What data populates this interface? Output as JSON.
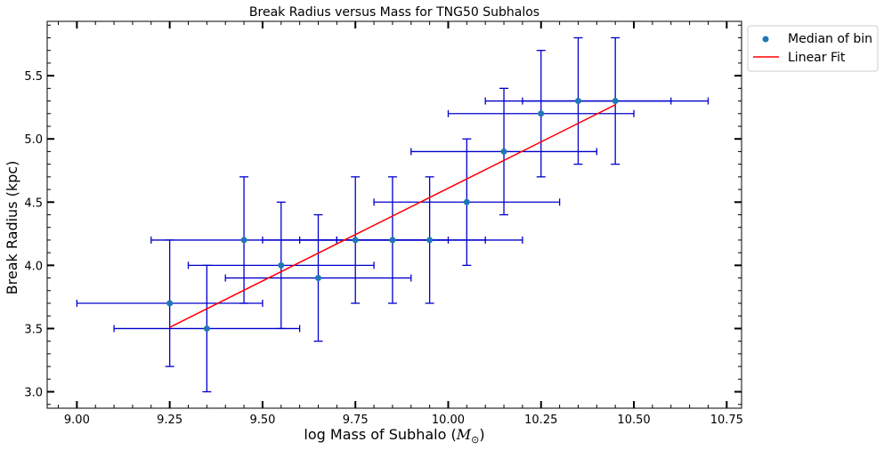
{
  "chart_data": {
    "type": "scatter",
    "title": "Break Radius versus Mass for TNG50 Subhalos",
    "xlabel": "log Mass of Subhalo (",
    "xlabel_math": "M",
    "xlabel_sub": "⊙",
    "xlabel_end": ")",
    "ylabel": "Break Radius (kpc)",
    "xlim": [
      8.92,
      10.79
    ],
    "ylim": [
      2.87,
      5.93
    ],
    "xticks": [
      9.0,
      9.25,
      9.5,
      9.75,
      10.0,
      10.25,
      10.5,
      10.75
    ],
    "xtick_labels": [
      "9.00",
      "9.25",
      "9.50",
      "9.75",
      "10.00",
      "10.25",
      "10.50",
      "10.75"
    ],
    "yticks": [
      3.0,
      3.5,
      4.0,
      4.5,
      5.0,
      5.5
    ],
    "ytick_labels": [
      "3.0",
      "3.5",
      "4.0",
      "4.5",
      "5.0",
      "5.5"
    ],
    "legend_position": "outside-top-right",
    "series": [
      {
        "name": "Median of bin",
        "kind": "errorbar-points",
        "color": "#1f77b4",
        "errorbar_color": "#0000cc",
        "points": [
          {
            "x": 9.25,
            "y": 3.7,
            "xerr": [
              0.25,
              0.25
            ],
            "yerr": [
              0.5,
              0.5
            ]
          },
          {
            "x": 9.35,
            "y": 3.5,
            "xerr": [
              0.25,
              0.25
            ],
            "yerr": [
              0.5,
              0.5
            ]
          },
          {
            "x": 9.45,
            "y": 4.2,
            "xerr": [
              0.25,
              0.25
            ],
            "yerr": [
              0.5,
              0.5
            ]
          },
          {
            "x": 9.55,
            "y": 4.0,
            "xerr": [
              0.25,
              0.25
            ],
            "yerr": [
              0.5,
              0.5
            ]
          },
          {
            "x": 9.65,
            "y": 3.9,
            "xerr": [
              0.25,
              0.25
            ],
            "yerr": [
              0.5,
              0.5
            ]
          },
          {
            "x": 9.75,
            "y": 4.2,
            "xerr": [
              0.25,
              0.25
            ],
            "yerr": [
              0.5,
              0.5
            ]
          },
          {
            "x": 9.85,
            "y": 4.2,
            "xerr": [
              0.25,
              0.25
            ],
            "yerr": [
              0.5,
              0.5
            ]
          },
          {
            "x": 9.95,
            "y": 4.2,
            "xerr": [
              0.25,
              0.25
            ],
            "yerr": [
              0.5,
              0.5
            ]
          },
          {
            "x": 10.05,
            "y": 4.5,
            "xerr": [
              0.25,
              0.25
            ],
            "yerr": [
              0.5,
              0.5
            ]
          },
          {
            "x": 10.15,
            "y": 4.9,
            "xerr": [
              0.25,
              0.25
            ],
            "yerr": [
              0.5,
              0.5
            ]
          },
          {
            "x": 10.25,
            "y": 5.2,
            "xerr": [
              0.25,
              0.25
            ],
            "yerr": [
              0.5,
              0.5
            ]
          },
          {
            "x": 10.35,
            "y": 5.3,
            "xerr": [
              0.25,
              0.25
            ],
            "yerr": [
              0.5,
              0.5
            ]
          },
          {
            "x": 10.45,
            "y": 5.3,
            "xerr": [
              0.25,
              0.25
            ],
            "yerr": [
              0.5,
              0.5
            ]
          }
        ]
      },
      {
        "name": "Linear Fit",
        "kind": "line",
        "color": "#ff0000",
        "x": [
          9.25,
          10.45
        ],
        "y": [
          3.51,
          5.27
        ]
      }
    ],
    "grid": false
  }
}
